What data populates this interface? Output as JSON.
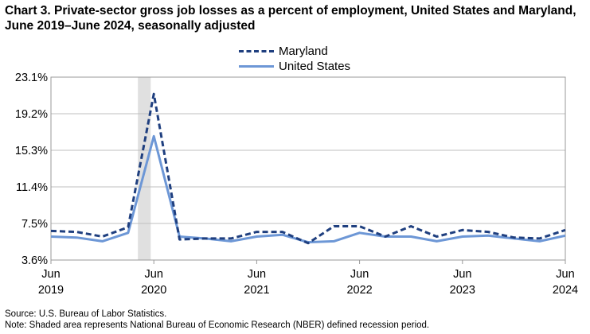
{
  "title": "Chart 3. Private-sector gross job losses as a percent of employment, United States and Maryland, June 2019–June 2024, seasonally adjusted",
  "colors": {
    "maryland": "#1f3f7f",
    "united_states": "#6d97d6",
    "recession": "#e0e0e0",
    "grid": "#bfbfbf"
  },
  "chart_data": {
    "type": "line",
    "title": "Chart 3. Private-sector gross job losses as a percent of employment, United States and Maryland, June 2019–June 2024, seasonally adjusted",
    "xlabel": "",
    "ylabel": "",
    "ylim": [
      3.6,
      23.1
    ],
    "yticks": [
      "3.6%",
      "7.5%",
      "11.4%",
      "15.3%",
      "19.2%",
      "23.1%"
    ],
    "ytick_values": [
      3.6,
      7.5,
      11.4,
      15.3,
      19.2,
      23.1
    ],
    "x": [
      "Jun 2019",
      "Sep 2019",
      "Dec 2019",
      "Mar 2020",
      "Jun 2020",
      "Sep 2020",
      "Dec 2020",
      "Mar 2021",
      "Jun 2021",
      "Sep 2021",
      "Dec 2021",
      "Mar 2022",
      "Jun 2022",
      "Sep 2022",
      "Dec 2022",
      "Mar 2023",
      "Jun 2023",
      "Sep 2023",
      "Dec 2023",
      "Mar 2024",
      "Jun 2024"
    ],
    "xtick_labels": [
      {
        "month": "Jun",
        "year": "2019",
        "index": 0
      },
      {
        "month": "Jun",
        "year": "2020",
        "index": 4
      },
      {
        "month": "Jun",
        "year": "2021",
        "index": 8
      },
      {
        "month": "Jun",
        "year": "2022",
        "index": 12
      },
      {
        "month": "Jun",
        "year": "2023",
        "index": 16
      },
      {
        "month": "Jun",
        "year": "2024",
        "index": 20
      }
    ],
    "recession": {
      "start": "Mar 2020",
      "end": "Jun 2020",
      "start_index": 3.38,
      "end_index": 3.88
    },
    "grid": true,
    "legend_position": "top-center",
    "series": [
      {
        "name": "Maryland",
        "style": "dashed",
        "values": [
          6.7,
          6.6,
          6.1,
          7.1,
          21.3,
          5.8,
          5.9,
          5.9,
          6.6,
          6.6,
          5.4,
          7.2,
          7.2,
          6.1,
          7.2,
          6.1,
          6.8,
          6.6,
          6.0,
          5.9,
          6.8
        ]
      },
      {
        "name": "United States",
        "style": "solid",
        "values": [
          6.1,
          6.0,
          5.6,
          6.5,
          16.8,
          6.1,
          5.9,
          5.6,
          6.1,
          6.3,
          5.5,
          5.6,
          6.5,
          6.1,
          6.1,
          5.6,
          6.1,
          6.2,
          5.9,
          5.6,
          6.2
        ]
      }
    ]
  },
  "legend": {
    "maryland": "Maryland",
    "united_states": "United States"
  },
  "notes": {
    "source": "Source: U.S. Bureau of Labor Statistics.",
    "note": "Note: Shaded area represents National Bureau of Economic Research (NBER) defined  recession period."
  }
}
